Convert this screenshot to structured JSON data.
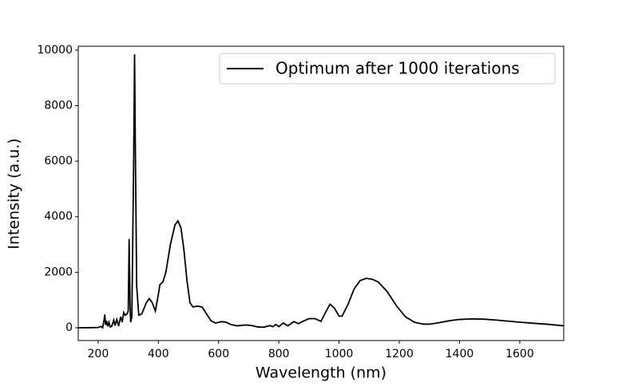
{
  "chart_data": {
    "type": "line",
    "xlabel": "Wavelength (nm)",
    "ylabel": "Intensity (a.u.)",
    "x": [
      134,
      180,
      200,
      210,
      215,
      220,
      222,
      225,
      228,
      232,
      236,
      240,
      245,
      252,
      256,
      262,
      268,
      275,
      280,
      285,
      290,
      296,
      300,
      303,
      306,
      308,
      312,
      318,
      321,
      324,
      328,
      335,
      345,
      360,
      370,
      380,
      390,
      400,
      405,
      415,
      425,
      440,
      455,
      465,
      475,
      485,
      495,
      505,
      515,
      530,
      545,
      560,
      575,
      590,
      610,
      625,
      640,
      660,
      690,
      710,
      730,
      750,
      770,
      780,
      790,
      800,
      815,
      830,
      850,
      865,
      880,
      900,
      920,
      940,
      955,
      970,
      985,
      1000,
      1010,
      1030,
      1050,
      1070,
      1090,
      1110,
      1130,
      1160,
      1190,
      1220,
      1250,
      1280,
      1300,
      1330,
      1370,
      1400,
      1440,
      1480,
      1520,
      1560,
      1600,
      1650,
      1700,
      1746
    ],
    "series": [
      {
        "name": "Optimum after 1000 iterations",
        "color": "#000000",
        "values": [
          0,
          5,
          10,
          50,
          0,
          300,
          480,
          100,
          250,
          50,
          200,
          30,
          50,
          280,
          80,
          300,
          60,
          400,
          200,
          550,
          450,
          500,
          600,
          3200,
          800,
          200,
          400,
          6000,
          9850,
          6000,
          1500,
          450,
          500,
          900,
          1050,
          900,
          600,
          1200,
          1550,
          1650,
          2000,
          3000,
          3700,
          3850,
          3600,
          2800,
          1700,
          900,
          750,
          780,
          750,
          500,
          250,
          170,
          220,
          200,
          120,
          70,
          100,
          80,
          30,
          20,
          80,
          40,
          120,
          40,
          170,
          70,
          220,
          150,
          230,
          330,
          330,
          230,
          550,
          850,
          700,
          420,
          420,
          850,
          1400,
          1700,
          1780,
          1750,
          1650,
          1300,
          800,
          400,
          200,
          130,
          130,
          180,
          260,
          300,
          320,
          310,
          280,
          240,
          200,
          160,
          120,
          70
        ]
      }
    ],
    "xlim": [
      134,
      1746
    ],
    "ylim": [
      -460,
      10140
    ],
    "xticks": [
      200,
      400,
      600,
      800,
      1000,
      1200,
      1400,
      1600
    ],
    "yticks": [
      0,
      2000,
      4000,
      6000,
      8000,
      10000
    ],
    "legend": "upper right"
  }
}
